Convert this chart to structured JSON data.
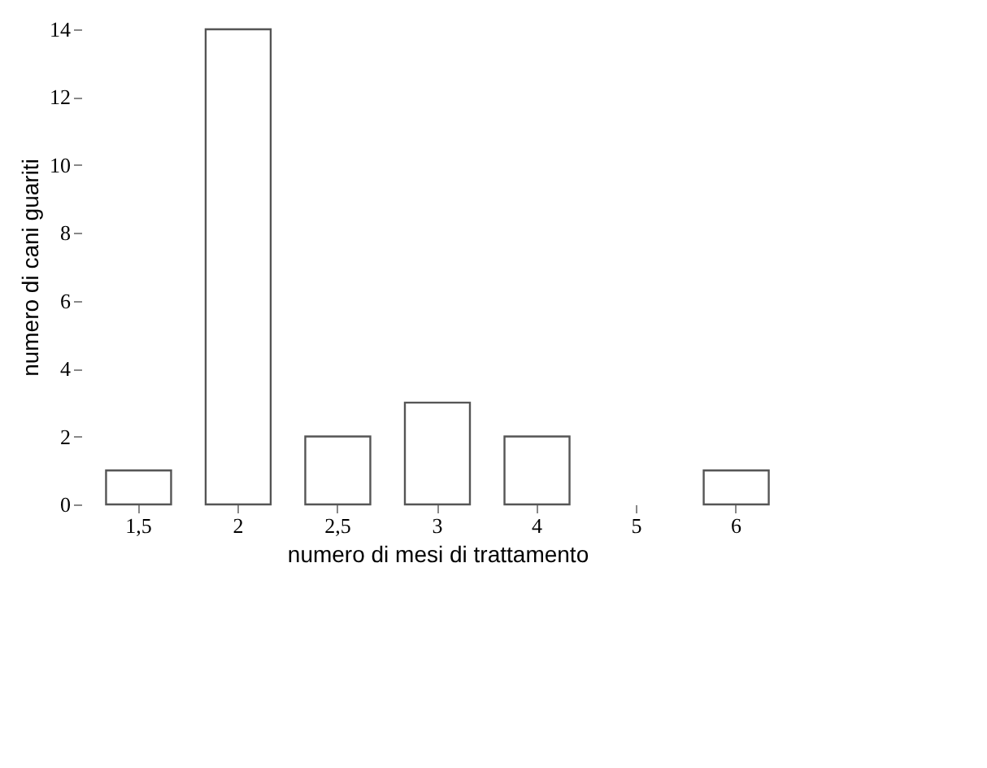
{
  "chart_data": {
    "type": "bar",
    "xlabel": "numero di mesi di trattamento",
    "ylabel": "numero di cani guariti",
    "categories": [
      "1,5",
      "2",
      "2,5",
      "3",
      "4",
      "5",
      "6"
    ],
    "values": [
      1,
      14,
      2,
      3,
      2,
      0,
      1
    ],
    "color": "#ffffff",
    "ylim": [
      0,
      14
    ],
    "yticks": [
      0,
      2,
      4,
      6,
      8,
      10,
      12,
      14
    ],
    "grid": false
  }
}
